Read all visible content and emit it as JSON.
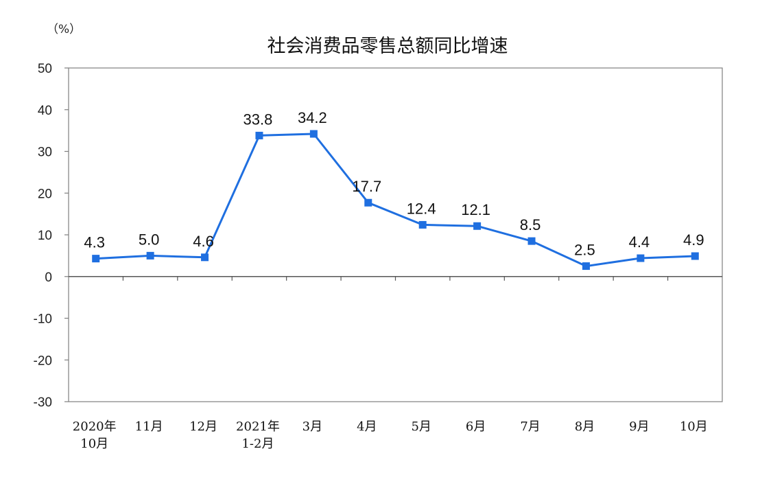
{
  "chart_data": {
    "type": "line",
    "title": "社会消费品零售总额同比增速",
    "unit_label": "（%）",
    "categories": [
      [
        "2020年",
        "10月"
      ],
      [
        "11月"
      ],
      [
        "12月"
      ],
      [
        "2021年",
        "1-2月"
      ],
      [
        "3月"
      ],
      [
        "4月"
      ],
      [
        "5月"
      ],
      [
        "6月"
      ],
      [
        "7月"
      ],
      [
        "8月"
      ],
      [
        "9月"
      ],
      [
        "10月"
      ]
    ],
    "series": [
      {
        "values": [
          4.3,
          5.0,
          4.6,
          33.8,
          34.2,
          17.7,
          12.4,
          12.1,
          8.5,
          2.5,
          4.4,
          4.9
        ],
        "labels": [
          "4.3",
          "5.0",
          "4.6",
          "33.8",
          "34.2",
          "17.7",
          "12.4",
          "12.1",
          "8.5",
          "2.5",
          "4.4",
          "4.9"
        ],
        "color": "#1f6fe0"
      }
    ],
    "ylim": [
      -30,
      50
    ],
    "yticks": [
      "-30",
      "-20",
      "-10",
      "0",
      "10",
      "20",
      "30",
      "40",
      "50"
    ],
    "grid": false,
    "legend": "none"
  }
}
